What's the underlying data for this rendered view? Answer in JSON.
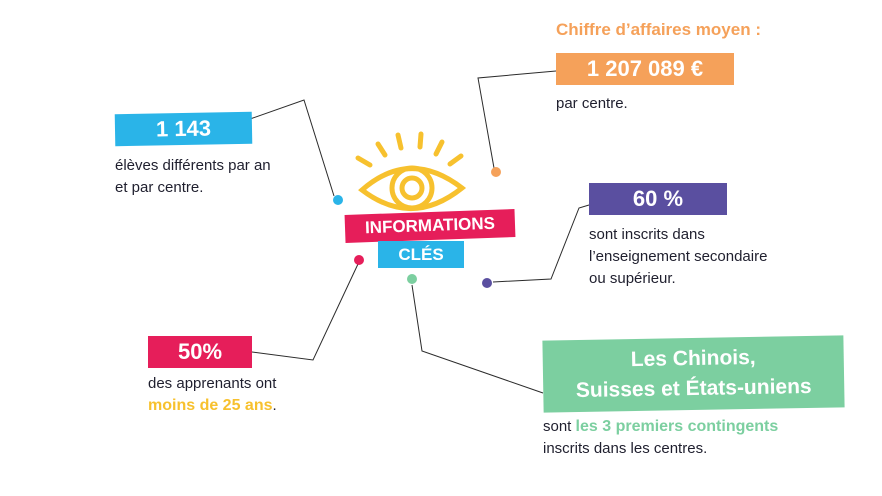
{
  "colors": {
    "blue": "#2ab4e8",
    "orange": "#f5a15a",
    "purple": "#5a4fa0",
    "pink": "#e61e5a",
    "green": "#7ccfa0",
    "yellow": "#f7c12e",
    "line": "#2b2b2b"
  },
  "icons": {
    "center": "eye-icon"
  },
  "center": {
    "title_line1": "INFORMATIONS",
    "title_line2": "CLÉS"
  },
  "stats": {
    "revenue": {
      "heading": "Chiffre d’affaires moyen :",
      "value": "1 207 089 €",
      "caption": "par centre."
    },
    "students": {
      "value": "1 143",
      "caption_line1": "élèves différents par an",
      "caption_line2": "et par centre."
    },
    "education": {
      "value": "60 %",
      "caption_line1": "sont inscrits dans",
      "caption_line2": "l’enseignement secondaire",
      "caption_line3": "ou supérieur."
    },
    "age": {
      "value": "50%",
      "caption_line1": "des apprenants ont",
      "highlight": "moins de 25 ans",
      "suffix": "."
    },
    "nationalities": {
      "value_line1": "Les Chinois,",
      "value_line2": "Suisses et États-uniens",
      "prefix": "sont",
      "highlight": "les 3 premiers contingents",
      "caption_line2": "inscrits dans les centres."
    }
  }
}
